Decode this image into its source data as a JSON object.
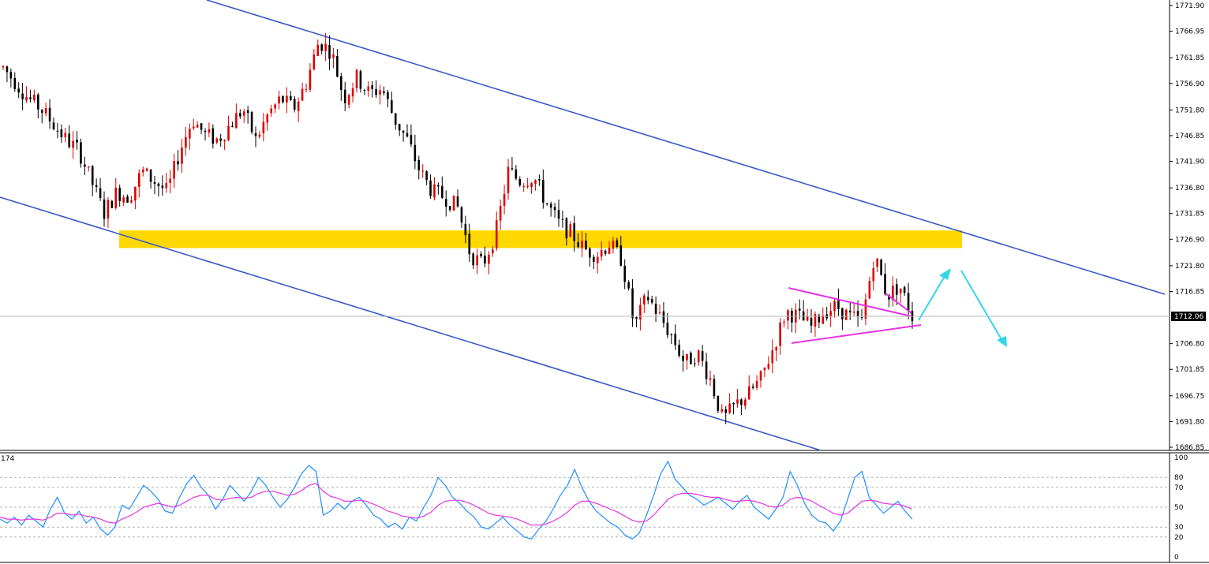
{
  "chart_data": [
    {
      "type": "candlestick",
      "panel": "price",
      "y_ticks": [
        "1771.90",
        "1766.95",
        "1761.85",
        "1756.90",
        "1751.80",
        "1746.85",
        "1741.90",
        "1736.80",
        "1731.85",
        "1726.90",
        "1721.80",
        "1716.85",
        "1712.06",
        "1706.80",
        "1701.85",
        "1696.75",
        "1691.80",
        "1686.85"
      ],
      "ylim": [
        1686.85,
        1771.9
      ],
      "current_price": "1712.06",
      "price_path": [
        1760,
        1757,
        1754,
        1752,
        1749,
        1746,
        1744,
        1738,
        1732,
        1736,
        1735,
        1740,
        1738,
        1736,
        1744,
        1750,
        1747,
        1746,
        1749,
        1752,
        1746,
        1751,
        1754,
        1752,
        1757,
        1765,
        1763,
        1754,
        1758,
        1755,
        1756,
        1750,
        1746,
        1740,
        1736,
        1735,
        1733,
        1724,
        1722,
        1728,
        1740,
        1738,
        1739,
        1734,
        1730,
        1728,
        1725,
        1724,
        1726,
        1723,
        1710,
        1716,
        1712,
        1708,
        1703,
        1705,
        1700,
        1692,
        1695,
        1697,
        1700,
        1706,
        1713,
        1712,
        1710,
        1713,
        1714,
        1712,
        1711,
        1724,
        1716,
        1718,
        1712
      ],
      "support_zone": [
        1725.2,
        1728.6
      ],
      "colors": {
        "bull": "#dd0000",
        "bear": "#000000",
        "channel": "#3a58c8",
        "zone": "#ffd800",
        "triangle": "#e633e6",
        "arrow": "#33d6e6"
      }
    },
    {
      "type": "line",
      "panel": "oscillator",
      "title": "174",
      "ylim": [
        0,
        100
      ],
      "y_ticks": [
        "100",
        "80",
        "70",
        "50",
        "30",
        "20",
        "0"
      ],
      "levels": [
        80,
        70,
        50,
        30,
        20
      ],
      "series": [
        {
          "color": "#1e90ff",
          "values": [
            38,
            34,
            40,
            32,
            42,
            36,
            30,
            48,
            60,
            44,
            38,
            46,
            34,
            40,
            28,
            22,
            30,
            52,
            48,
            60,
            72,
            66,
            58,
            46,
            44,
            60,
            74,
            82,
            70,
            62,
            48,
            58,
            72,
            64,
            56,
            66,
            80,
            72,
            60,
            50,
            58,
            70,
            84,
            92,
            86,
            42,
            46,
            54,
            48,
            56,
            60,
            52,
            42,
            38,
            30,
            34,
            28,
            40,
            36,
            50,
            62,
            80,
            72,
            60,
            54,
            46,
            40,
            30,
            28,
            34,
            40,
            32,
            26,
            20,
            18,
            28,
            36,
            48,
            62,
            72,
            88,
            70,
            56,
            46,
            40,
            34,
            30,
            22,
            18,
            24,
            42,
            62,
            84,
            96,
            78,
            70,
            62,
            58,
            52,
            56,
            60,
            54,
            48,
            56,
            62,
            50,
            44,
            38,
            48,
            60,
            86,
            72,
            54,
            42,
            36,
            34,
            26,
            36,
            58,
            80,
            86,
            60,
            52,
            44,
            50,
            56,
            46,
            38
          ]
        },
        {
          "color": "#e633e6",
          "values": [
            40,
            38,
            38,
            37,
            38,
            38,
            37,
            40,
            44,
            44,
            42,
            43,
            41,
            40,
            38,
            35,
            34,
            38,
            41,
            45,
            50,
            52,
            54,
            52,
            50,
            52,
            56,
            60,
            62,
            62,
            58,
            57,
            59,
            60,
            59,
            60,
            64,
            66,
            66,
            64,
            62,
            63,
            67,
            72,
            74,
            66,
            61,
            59,
            56,
            56,
            57,
            56,
            53,
            50,
            46,
            44,
            41,
            40,
            39,
            41,
            45,
            52,
            56,
            57,
            57,
            55,
            52,
            48,
            44,
            42,
            41,
            40,
            38,
            35,
            32,
            32,
            33,
            36,
            40,
            45,
            52,
            56,
            56,
            54,
            51,
            48,
            45,
            41,
            37,
            35,
            36,
            42,
            50,
            58,
            62,
            64,
            64,
            63,
            61,
            60,
            60,
            58,
            56,
            56,
            57,
            56,
            54,
            51,
            50,
            52,
            58,
            60,
            59,
            56,
            52,
            48,
            44,
            42,
            44,
            50,
            56,
            57,
            56,
            54,
            53,
            53,
            51,
            48
          ]
        }
      ]
    }
  ]
}
